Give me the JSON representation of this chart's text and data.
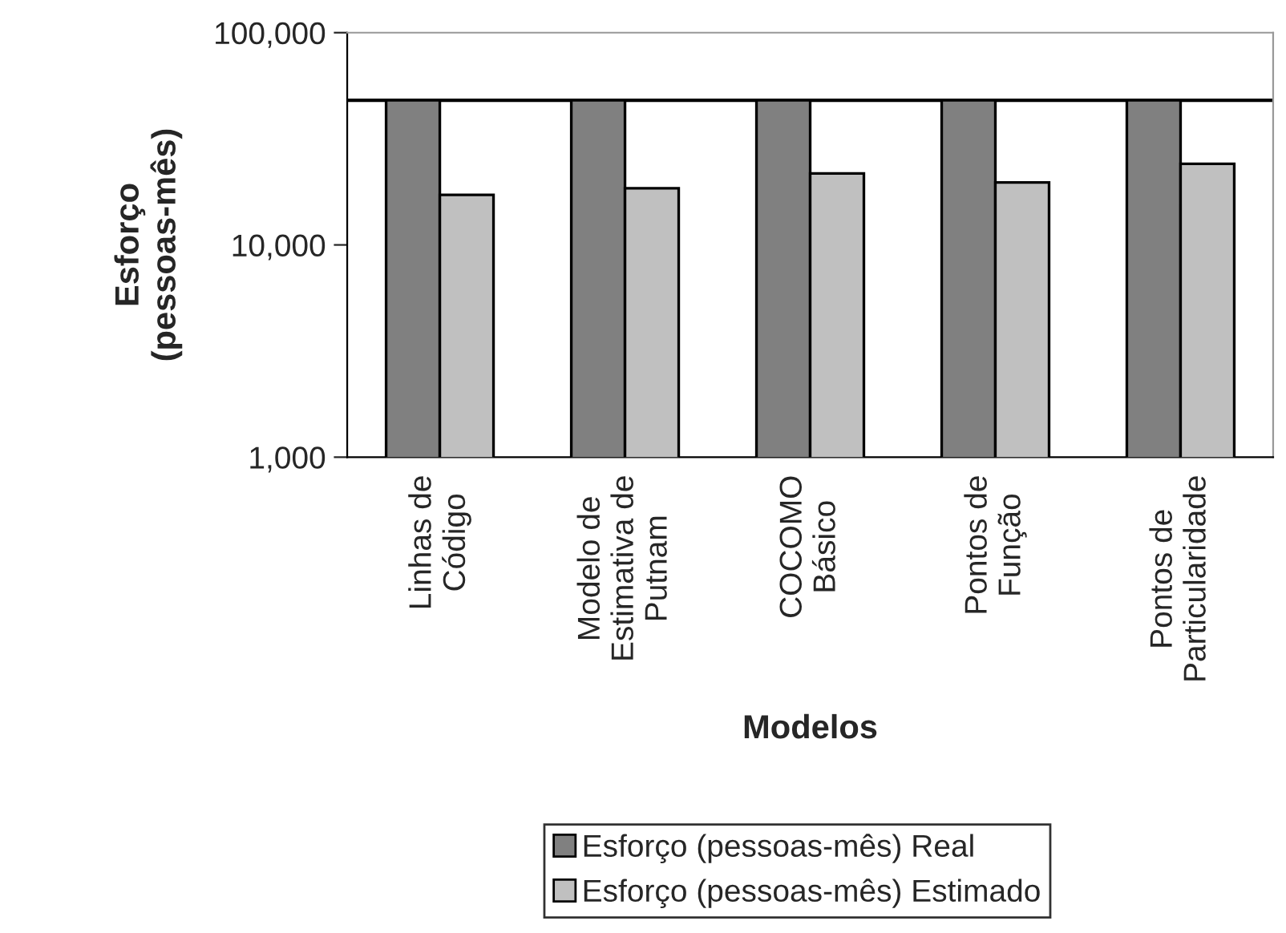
{
  "chart_data": {
    "type": "bar",
    "xlabel": "Modelos",
    "ylabel": "Esforço\n(pessoas-mês)",
    "categories": [
      "Linhas de\nCódigo",
      "Modelo de\nEstimativa de\nPutnam",
      "COCOMO\nBásico",
      "Pontos de\nFunção",
      "Pontos de\nParticularidade"
    ],
    "series": [
      {
        "name": "Esforço (pessoas-mês) Real",
        "color": "#808080",
        "values": [
          48000,
          48000,
          48000,
          48000,
          48000
        ]
      },
      {
        "name": "Esforço (pessoas-mês) Estimado",
        "color": "#c0c0c0",
        "values": [
          17200,
          18500,
          21700,
          19700,
          24100
        ]
      }
    ],
    "log": true,
    "ylim": [
      1000,
      100000
    ],
    "yticks": [
      {
        "value": 1000,
        "label": "1,000"
      },
      {
        "value": 10000,
        "label": "10,000"
      },
      {
        "value": 100000,
        "label": "100,000"
      }
    ],
    "ref_lines": [
      {
        "axis": "y",
        "value": 48000,
        "color": "#000000"
      }
    ],
    "grid": false,
    "legend": "bottom"
  }
}
